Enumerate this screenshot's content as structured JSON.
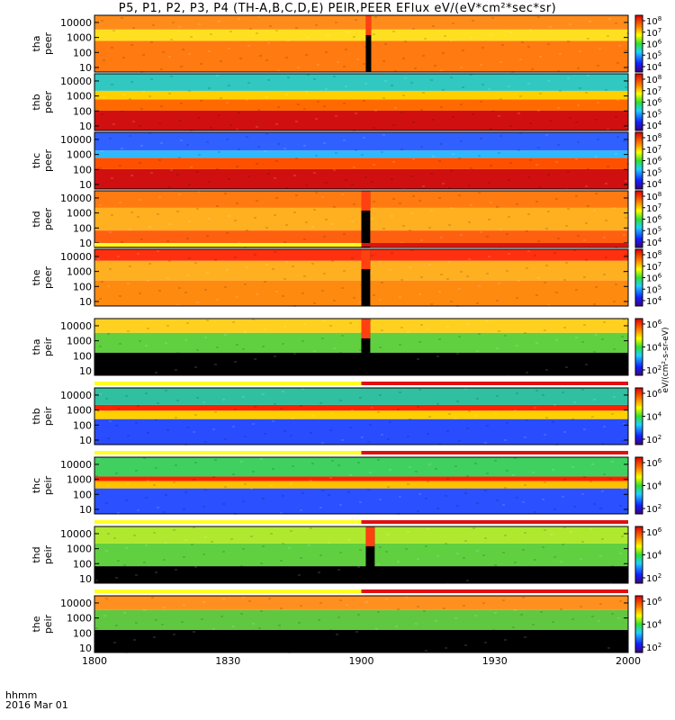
{
  "title": "P5, P1, P2, P3, P4 (TH-A,B,C,D,E) PEIR,PEER EFlux eV/(eV*cm²*sec*sr)",
  "time_label": "hhmm",
  "date_label": "2016 Mar 01",
  "colorbar_unit_label": "eV/(cm²-s-sr-eV)",
  "chart_data": [
    {
      "type": "heatmap",
      "panels": [
        {
          "name": "tha peer",
          "ylabel": [
            "tha",
            "peer"
          ],
          "ytick_labels": [
            "10",
            "100",
            "1000",
            "10000"
          ],
          "ylim": [
            5,
            30000
          ],
          "ylog": true,
          "colorbar_ticks": [
            "10^4",
            "10^5",
            "10^6",
            "10^7",
            "10^8"
          ],
          "quality_bar": false,
          "bands": [
            {
              "from": 0.0,
              "to": 0.55,
              "color": "#ff7a10"
            },
            {
              "from": 0.55,
              "to": 0.75,
              "color": "#ffe020"
            },
            {
              "from": 0.75,
              "to": 1.0,
              "color": "#ff8c1a"
            }
          ],
          "gap": [
            1901,
            1902
          ]
        },
        {
          "name": "thb peer",
          "ylabel": [
            "thb",
            "peer"
          ],
          "ytick_labels": [
            "10",
            "100",
            "1000",
            "10000"
          ],
          "ylim": [
            5,
            30000
          ],
          "ylog": true,
          "colorbar_ticks": [
            "10^4",
            "10^5",
            "10^6",
            "10^7",
            "10^8"
          ],
          "quality_bar": false,
          "bands": [
            {
              "from": 0.0,
              "to": 0.35,
              "color": "#d01010"
            },
            {
              "from": 0.35,
              "to": 0.55,
              "color": "#ff6a00"
            },
            {
              "from": 0.55,
              "to": 0.7,
              "color": "#ffd000"
            },
            {
              "from": 0.7,
              "to": 1.0,
              "color": "#30c8c0"
            }
          ]
        },
        {
          "name": "thc peer",
          "ylabel": [
            "thc",
            "peer"
          ],
          "ytick_labels": [
            "10",
            "100",
            "1000",
            "10000"
          ],
          "ylim": [
            5,
            30000
          ],
          "ylog": true,
          "colorbar_ticks": [
            "10^4",
            "10^5",
            "10^6",
            "10^7",
            "10^8"
          ],
          "quality_bar": false,
          "bands": [
            {
              "from": 0.0,
              "to": 0.35,
              "color": "#d01010"
            },
            {
              "from": 0.35,
              "to": 0.55,
              "color": "#ff5000"
            },
            {
              "from": 0.55,
              "to": 0.68,
              "color": "#30b8ff"
            },
            {
              "from": 0.68,
              "to": 1.0,
              "color": "#3060ff"
            }
          ]
        },
        {
          "name": "thd peer",
          "ylabel": [
            "thd",
            "peer"
          ],
          "ytick_labels": [
            "10",
            "100",
            "1000",
            "10000"
          ],
          "ylim": [
            5,
            30000
          ],
          "ylog": true,
          "colorbar_ticks": [
            "10^4",
            "10^5",
            "10^6",
            "10^7",
            "10^8"
          ],
          "quality_bar": false,
          "bands": [
            {
              "from": 0.0,
              "to": 0.3,
              "color": "#ff6010"
            },
            {
              "from": 0.3,
              "to": 0.7,
              "color": "#ffb020"
            },
            {
              "from": 0.7,
              "to": 1.0,
              "color": "#ff7a10"
            }
          ],
          "gap": [
            1900,
            1902
          ]
        },
        {
          "name": "the peer",
          "ylabel": [
            "the",
            "peer"
          ],
          "ytick_labels": [
            "10",
            "100",
            "1000",
            "10000"
          ],
          "ylim": [
            5,
            30000
          ],
          "ylog": true,
          "colorbar_ticks": [
            "10^4",
            "10^5",
            "10^6",
            "10^7",
            "10^8"
          ],
          "quality_bar": true,
          "bands": [
            {
              "from": 0.0,
              "to": 0.45,
              "color": "#ff8a10"
            },
            {
              "from": 0.45,
              "to": 0.8,
              "color": "#ffb020"
            },
            {
              "from": 0.8,
              "to": 1.0,
              "color": "#ff3010"
            }
          ],
          "gap": [
            1900,
            1902
          ]
        },
        {
          "name": "tha peir",
          "ylabel": [
            "tha",
            "peir"
          ],
          "ytick_labels": [
            "10",
            "100",
            "1000",
            "10000"
          ],
          "ylim": [
            5,
            30000
          ],
          "ylog": true,
          "colorbar_ticks": [
            "10^2",
            "10^4",
            "10^6"
          ],
          "quality_bar": false,
          "bands": [
            {
              "from": 0.0,
              "to": 0.4,
              "color": "#000000"
            },
            {
              "from": 0.4,
              "to": 0.75,
              "color": "#60d040"
            },
            {
              "from": 0.75,
              "to": 1.0,
              "color": "#ffd020"
            }
          ],
          "gap": [
            1900,
            1902
          ]
        },
        {
          "name": "thb peir",
          "ylabel": [
            "thb",
            "peir"
          ],
          "ytick_labels": [
            "10",
            "100",
            "1000",
            "10000"
          ],
          "ylim": [
            5,
            30000
          ],
          "ylog": true,
          "colorbar_ticks": [
            "10^2",
            "10^4",
            "10^6"
          ],
          "quality_bar": true,
          "bands": [
            {
              "from": 0.0,
              "to": 0.45,
              "color": "#2a4cff"
            },
            {
              "from": 0.45,
              "to": 0.6,
              "color": "#ffd000"
            },
            {
              "from": 0.6,
              "to": 0.7,
              "color": "#ff2000"
            },
            {
              "from": 0.7,
              "to": 1.0,
              "color": "#30c0a0"
            }
          ]
        },
        {
          "name": "thc peir",
          "ylabel": [
            "thc",
            "peir"
          ],
          "ytick_labels": [
            "10",
            "100",
            "1000",
            "10000"
          ],
          "ylim": [
            5,
            30000
          ],
          "ylog": true,
          "colorbar_ticks": [
            "10^2",
            "10^4",
            "10^6"
          ],
          "quality_bar": true,
          "bands": [
            {
              "from": 0.0,
              "to": 0.45,
              "color": "#2a50ff"
            },
            {
              "from": 0.45,
              "to": 0.58,
              "color": "#ffc000"
            },
            {
              "from": 0.58,
              "to": 0.66,
              "color": "#ff2000"
            },
            {
              "from": 0.66,
              "to": 1.0,
              "color": "#40d060"
            }
          ]
        },
        {
          "name": "thd peir",
          "ylabel": [
            "thd",
            "peir"
          ],
          "ytick_labels": [
            "10",
            "100",
            "1000",
            "10000"
          ],
          "ylim": [
            5,
            30000
          ],
          "ylog": true,
          "colorbar_ticks": [
            "10^2",
            "10^4",
            "10^6"
          ],
          "quality_bar": true,
          "bands": [
            {
              "from": 0.0,
              "to": 0.3,
              "color": "#000000"
            },
            {
              "from": 0.3,
              "to": 0.7,
              "color": "#60d040"
            },
            {
              "from": 0.7,
              "to": 1.0,
              "color": "#b0e830"
            }
          ],
          "gap": [
            1901,
            1903
          ]
        },
        {
          "name": "the peir",
          "ylabel": [
            "the",
            "peir"
          ],
          "ytick_labels": [
            "10",
            "100",
            "1000",
            "10000"
          ],
          "ylim": [
            5,
            30000
          ],
          "ylog": true,
          "colorbar_ticks": [
            "10^2",
            "10^4",
            "10^6"
          ],
          "quality_bar": true,
          "bands": [
            {
              "from": 0.0,
              "to": 0.4,
              "color": "#000000"
            },
            {
              "from": 0.4,
              "to": 0.75,
              "color": "#60c840"
            },
            {
              "from": 0.75,
              "to": 1.0,
              "color": "#ff9020"
            }
          ]
        }
      ],
      "x_tick_labels": [
        "1800",
        "1830",
        "1900",
        "1930",
        "2000"
      ],
      "x_range": [
        "1800",
        "2000"
      ]
    }
  ]
}
